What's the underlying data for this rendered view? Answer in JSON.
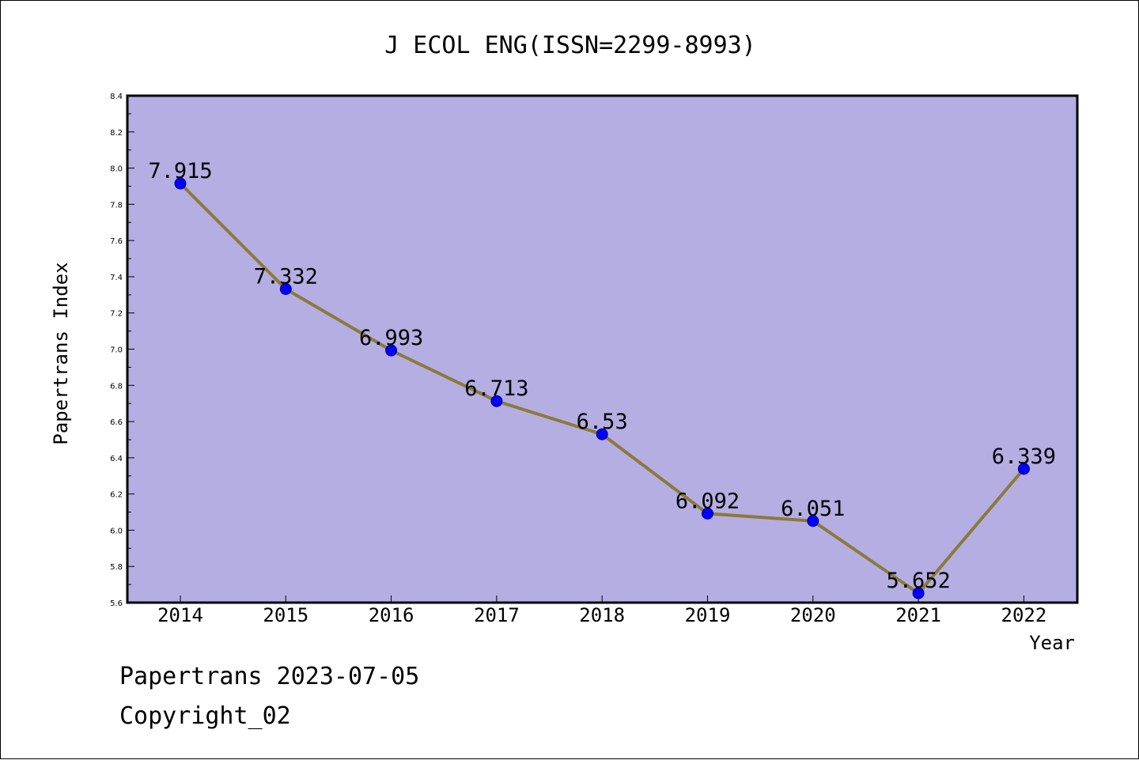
{
  "chart_data": {
    "type": "line",
    "title": "J ECOL ENG(ISSN=2299-8993)",
    "xlabel": "Year",
    "ylabel": "Papertrans Index",
    "categories": [
      "2014",
      "2015",
      "2016",
      "2017",
      "2018",
      "2019",
      "2020",
      "2021",
      "2022"
    ],
    "series": [
      {
        "values": [
          7.915,
          7.332,
          6.993,
          6.713,
          6.53,
          6.092,
          6.051,
          5.652,
          6.339
        ],
        "labels": [
          "7.915",
          "7.332",
          "6.993",
          "6.713",
          "6.53",
          "6.092",
          "6.051",
          "5.652",
          "6.339"
        ]
      }
    ],
    "ylim": [
      5.6,
      8.4
    ],
    "yticks": [
      "5.6",
      "5.8",
      "6.0",
      "6.2",
      "6.4",
      "6.6",
      "6.8",
      "7.0",
      "7.2",
      "7.4",
      "7.6",
      "7.8",
      "8.0",
      "8.2",
      "8.4"
    ],
    "grid": false,
    "colors": {
      "plot_background": "#b4aee2",
      "line": "#8b7a3a",
      "marker": "#0000ff"
    }
  },
  "footer": {
    "line1": "Papertrans 2023-07-05",
    "line2": "Copyright_02"
  }
}
